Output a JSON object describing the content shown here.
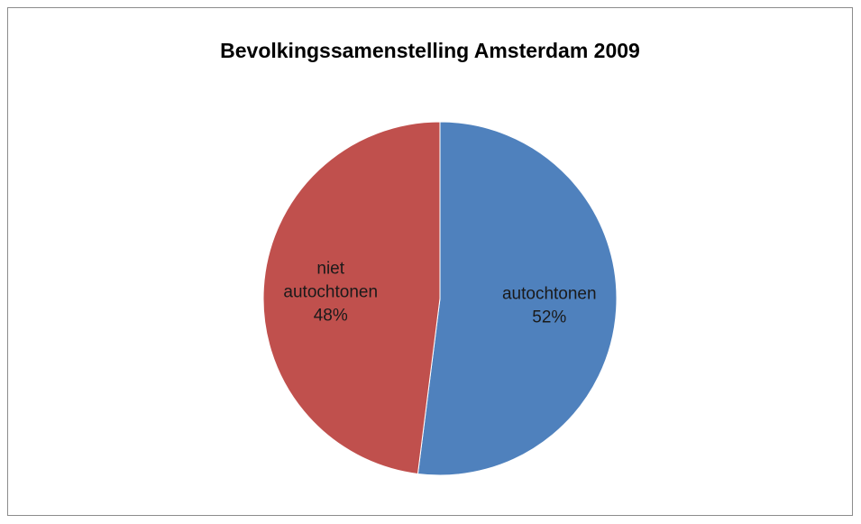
{
  "chart_data": {
    "type": "pie",
    "title": "Bevolkingssamenstelling Amsterdam 2009",
    "slices": [
      {
        "label": "autochtonen",
        "value": 52,
        "percent_label": "52%",
        "color": "#4f81bd"
      },
      {
        "label": "niet autochtonen",
        "value": 48,
        "percent_label": "48%",
        "color": "#c0504d"
      }
    ],
    "start_angle": "12 o'clock",
    "direction": "clockwise",
    "data_labels": "inside",
    "legend": "none"
  }
}
